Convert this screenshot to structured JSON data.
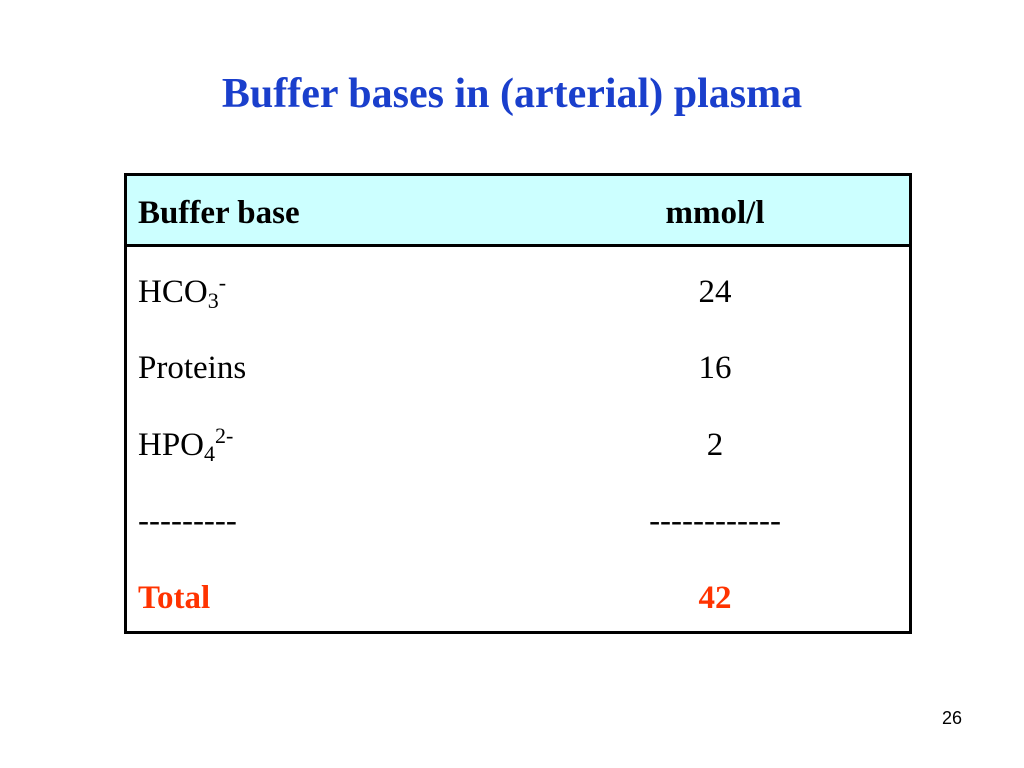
{
  "header": {
    "title": "Buffer bases in (arterial) plasma"
  },
  "table": {
    "columns": [
      "Buffer base",
      "mmol/l"
    ],
    "rows": [
      [
        {
          "text": "HCO",
          "sub": "3",
          "sup": "-"
        },
        24
      ],
      [
        "Proteins",
        16
      ],
      [
        {
          "text": "HPO",
          "sub": "4",
          "sup": "2-"
        },
        2
      ],
      [
        "---------",
        "------------"
      ],
      [
        "Total",
        42
      ]
    ]
  },
  "footer": {
    "page_number": 26
  }
}
